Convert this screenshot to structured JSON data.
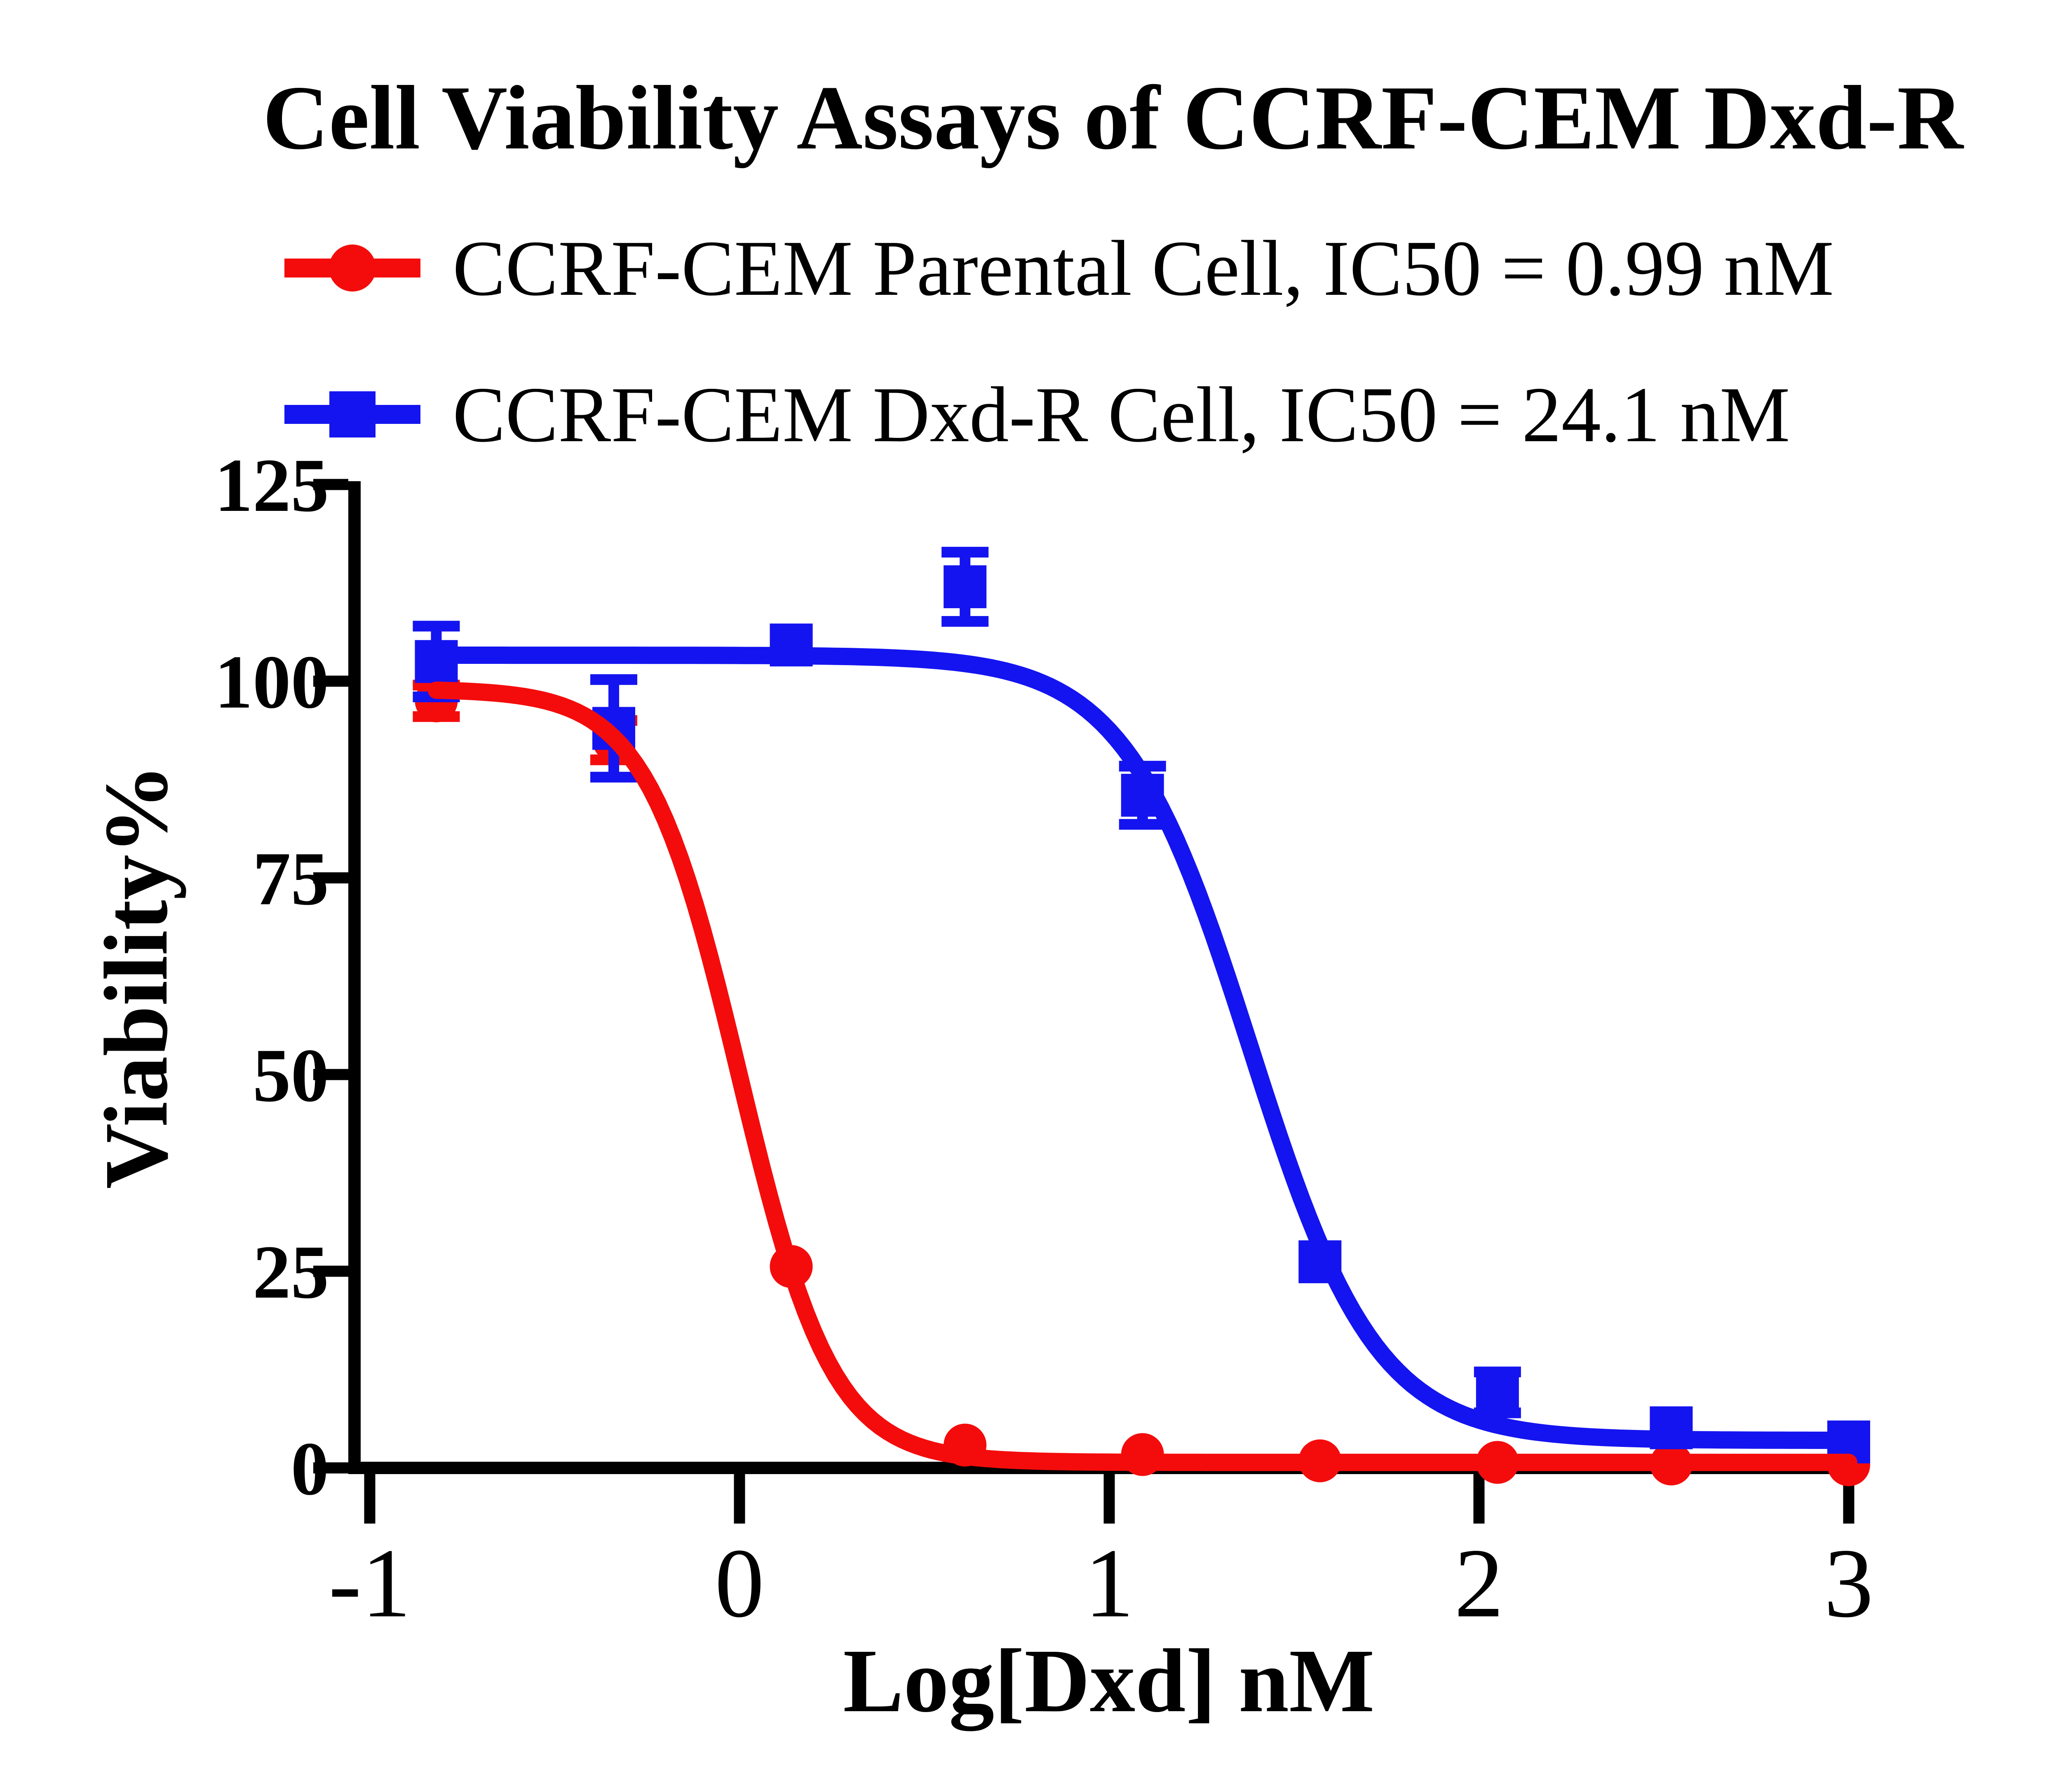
{
  "title": "Cell Viability Assays of CCRF-CEM Dxd-R",
  "legend": [
    {
      "label": "CCRF-CEM Parental Cell, IC50 = 0.99 nM",
      "marker": "circle",
      "color": "#F40C0C"
    },
    {
      "label": "CCRF-CEM Dxd-R Cell, IC50 = 24.1 nM",
      "marker": "square",
      "color": "#1414F0"
    }
  ],
  "chart_data": {
    "type": "scatter",
    "subtype": "dose-response-curve",
    "title": "Cell Viability Assays of CCRF-CEM Dxd-R",
    "xlabel": "Log[Dxd] nM",
    "ylabel": "Viability%",
    "xlim": [
      -1,
      3
    ],
    "ylim": [
      0,
      125
    ],
    "x_ticks": [
      -1,
      0,
      1,
      2,
      3
    ],
    "y_ticks": [
      0,
      25,
      50,
      75,
      100,
      125
    ],
    "grid": false,
    "legend_position": "top-left",
    "axis_color": "#000000",
    "x": [
      -0.82,
      -0.34,
      0.14,
      0.61,
      1.09,
      1.57,
      2.05,
      2.52,
      3.0
    ],
    "series": [
      {
        "name": "CCRF-CEM Parental Cell",
        "ic50_label": "IC50 = 0.99 nM",
        "ic50_nM": 0.99,
        "color": "#F40C0C",
        "marker": "circle",
        "values": [
          97.5,
          92.5,
          25.6,
          2.9,
          1.7,
          0.9,
          0.7,
          0.5,
          0.4
        ],
        "errors": [
          2.0,
          2.5,
          0,
          0,
          0,
          0,
          0,
          0,
          0
        ],
        "fit": {
          "top": 99.0,
          "bottom": 0.7,
          "logIC50": 0.0,
          "hill": 3.45
        }
      },
      {
        "name": "CCRF-CEM Dxd-R Cell",
        "ic50_label": "IC50 = 24.1 nM",
        "ic50_nM": 24.1,
        "color": "#1414F0",
        "marker": "square",
        "values": [
          102.5,
          94.0,
          104.6,
          112.0,
          85.5,
          26.2,
          9.6,
          5.1,
          3.3
        ],
        "errors": [
          4.5,
          6.2,
          0,
          4.4,
          3.7,
          0,
          2.6,
          0,
          0
        ],
        "fit": {
          "top": 103.3,
          "bottom": 3.5,
          "logIC50": 1.382,
          "hill": 2.55
        }
      }
    ]
  }
}
